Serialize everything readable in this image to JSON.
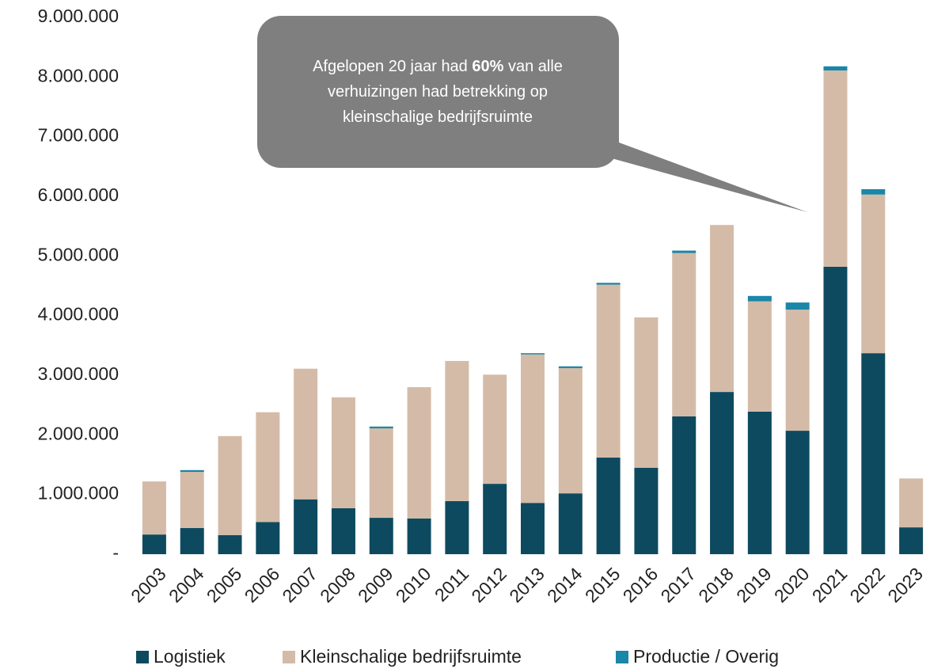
{
  "chart_data": {
    "type": "stacked_bar",
    "annotation": [
      "Afgelopen 20 jaar had ",
      "60%",
      " van alle verhuizingen had betrekking op kleinschalige bedrijfsruimte"
    ],
    "categories": [
      "2003",
      "2004",
      "2005",
      "2006",
      "2007",
      "2008",
      "2009",
      "2010",
      "2011",
      "2012",
      "2013",
      "2014",
      "2015",
      "2016",
      "2017",
      "2018",
      "2019",
      "2020",
      "2021",
      "2022",
      "2023"
    ],
    "series": [
      {
        "name": "Logistiek",
        "color": "#0e4a5f",
        "values": [
          330000,
          440000,
          320000,
          540000,
          920000,
          770000,
          610000,
          600000,
          890000,
          1180000,
          860000,
          1020000,
          1620000,
          1450000,
          2310000,
          2720000,
          2390000,
          2070000,
          4820000,
          3370000,
          450000
        ]
      },
      {
        "name": "Kleinschalige bedrijfsruimte",
        "color": "#d4bba8",
        "values": [
          890000,
          940000,
          1660000,
          1840000,
          2190000,
          1860000,
          1500000,
          2200000,
          2350000,
          1830000,
          2490000,
          2100000,
          2900000,
          2520000,
          2740000,
          2800000,
          1850000,
          2030000,
          3290000,
          2660000,
          820000
        ]
      },
      {
        "name": "Productie / Overig",
        "color": "#1a86a8",
        "values": [
          0,
          30000,
          0,
          0,
          0,
          0,
          30000,
          0,
          0,
          0,
          20000,
          30000,
          30000,
          0,
          40000,
          0,
          90000,
          120000,
          70000,
          90000,
          0
        ]
      }
    ],
    "ylim": [
      0,
      9000000
    ],
    "yticks": [
      {
        "value": 0,
        "label": "-"
      },
      {
        "value": 1000000,
        "label": "1.000.000"
      },
      {
        "value": 2000000,
        "label": "2.000.000"
      },
      {
        "value": 3000000,
        "label": "3.000.000"
      },
      {
        "value": 4000000,
        "label": "4.000.000"
      },
      {
        "value": 5000000,
        "label": "5.000.000"
      },
      {
        "value": 6000000,
        "label": "6.000.000"
      },
      {
        "value": 7000000,
        "label": "7.000.000"
      },
      {
        "value": 8000000,
        "label": "8.000.000"
      },
      {
        "value": 9000000,
        "label": "9.000.000"
      }
    ],
    "legend": "bottom"
  }
}
